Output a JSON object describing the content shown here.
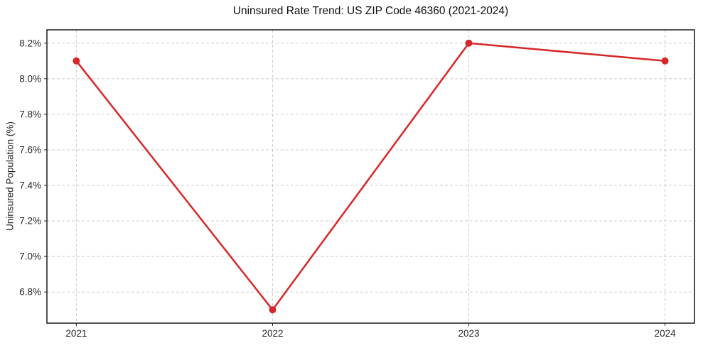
{
  "chart_data": {
    "type": "line",
    "title": "Uninsured Rate Trend: US ZIP Code 46360 (2021-2024)",
    "ylabel": "Uninsured Population (%)",
    "xlabel": "",
    "x": [
      2021,
      2022,
      2023,
      2024
    ],
    "x_tick_labels": [
      "2021",
      "2022",
      "2023",
      "2024"
    ],
    "values": [
      8.1,
      6.7,
      8.2,
      8.1
    ],
    "y_ticks": [
      {
        "value": 8.2,
        "label": "8.2%"
      },
      {
        "value": 8.0,
        "label": "8.0%"
      },
      {
        "value": 7.8,
        "label": "7.8%"
      },
      {
        "value": 7.6,
        "label": "7.6%"
      },
      {
        "value": 7.4,
        "label": "7.4%"
      },
      {
        "value": 7.2,
        "label": "7.2%"
      },
      {
        "value": 7.0,
        "label": "7.0%"
      },
      {
        "value": 6.8,
        "label": "6.8%"
      }
    ],
    "ylim": [
      6.625,
      8.275
    ],
    "xlim": [
      2020.85,
      2024.15
    ],
    "grid": true,
    "legend": false,
    "line_color": "#d62728",
    "grid_color": "#cdcdcd",
    "spine_color": "#1a1a1a",
    "text_color": "#262626",
    "marker": "circle"
  }
}
